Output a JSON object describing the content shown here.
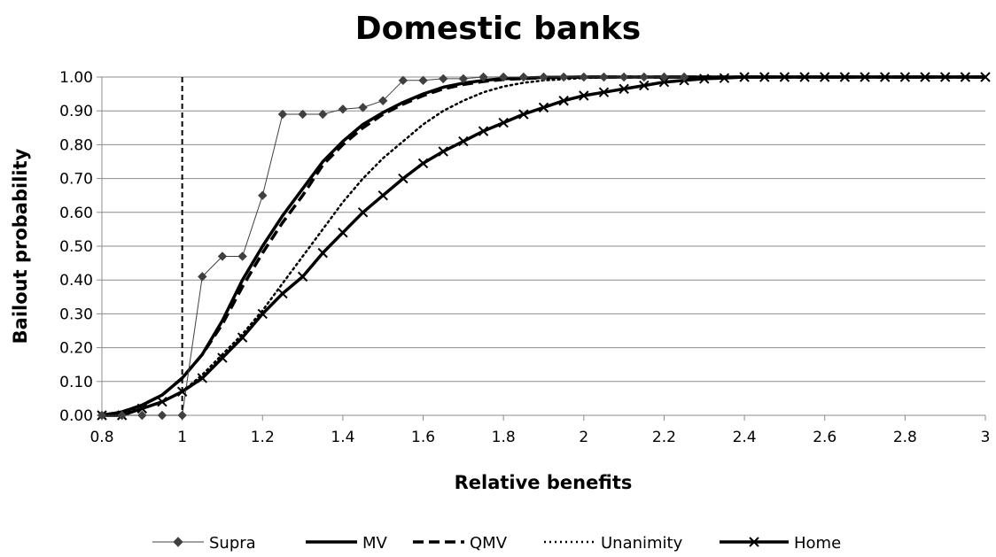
{
  "chart_data": {
    "type": "line",
    "title": "Domestic banks",
    "xlabel": "Relative benefits",
    "ylabel": "Bailout probability",
    "xlim": [
      0.8,
      3
    ],
    "ylim": [
      0,
      1
    ],
    "x_ticks": [
      "0.8",
      "1",
      "1.2",
      "1.4",
      "1.6",
      "1.8",
      "2",
      "2.2",
      "2.4",
      "2.6",
      "2.8",
      "3"
    ],
    "y_ticks": [
      "0.00",
      "0.10",
      "0.20",
      "0.30",
      "0.40",
      "0.50",
      "0.60",
      "0.70",
      "0.80",
      "0.90",
      "1.00"
    ],
    "grid": "horizontal",
    "legend_position": "bottom",
    "reference_line": {
      "x": 1.0,
      "style": "dashed"
    },
    "series": [
      {
        "name": "Supra",
        "style": "thin-diamond",
        "color": "#404040",
        "points": [
          [
            0.8,
            0.0
          ],
          [
            0.85,
            0.0
          ],
          [
            0.9,
            0.0
          ],
          [
            0.95,
            0.0
          ],
          [
            1.0,
            0.0
          ],
          [
            1.05,
            0.41
          ],
          [
            1.1,
            0.47
          ],
          [
            1.15,
            0.47
          ],
          [
            1.2,
            0.65
          ],
          [
            1.25,
            0.89
          ],
          [
            1.3,
            0.89
          ],
          [
            1.35,
            0.89
          ],
          [
            1.4,
            0.905
          ],
          [
            1.45,
            0.91
          ],
          [
            1.5,
            0.93
          ],
          [
            1.55,
            0.99
          ],
          [
            1.6,
            0.99
          ],
          [
            1.65,
            0.995
          ],
          [
            1.7,
            0.995
          ],
          [
            1.75,
            1.0
          ],
          [
            1.8,
            1.0
          ],
          [
            1.85,
            1.0
          ],
          [
            1.9,
            1.0
          ],
          [
            1.95,
            1.0
          ],
          [
            2.0,
            1.0
          ],
          [
            2.05,
            1.0
          ],
          [
            2.1,
            1.0
          ],
          [
            2.15,
            1.0
          ],
          [
            2.2,
            1.0
          ],
          [
            2.25,
            1.0
          ]
        ]
      },
      {
        "name": "MV",
        "style": "thick-solid",
        "color": "#000000",
        "points": [
          [
            0.8,
            0.0
          ],
          [
            0.85,
            0.01
          ],
          [
            0.9,
            0.03
          ],
          [
            0.95,
            0.06
          ],
          [
            1.0,
            0.11
          ],
          [
            1.05,
            0.18
          ],
          [
            1.1,
            0.28
          ],
          [
            1.15,
            0.4
          ],
          [
            1.2,
            0.5
          ],
          [
            1.25,
            0.59
          ],
          [
            1.3,
            0.67
          ],
          [
            1.35,
            0.75
          ],
          [
            1.4,
            0.81
          ],
          [
            1.45,
            0.86
          ],
          [
            1.5,
            0.895
          ],
          [
            1.55,
            0.925
          ],
          [
            1.6,
            0.95
          ],
          [
            1.65,
            0.97
          ],
          [
            1.7,
            0.982
          ],
          [
            1.75,
            0.99
          ],
          [
            1.8,
            0.995
          ],
          [
            1.9,
            0.999
          ],
          [
            2.0,
            1.0
          ],
          [
            2.2,
            1.0
          ],
          [
            2.5,
            1.0
          ],
          [
            3.0,
            1.0
          ]
        ]
      },
      {
        "name": "QMV",
        "style": "dashed",
        "color": "#000000",
        "points": [
          [
            0.8,
            0.0
          ],
          [
            0.85,
            0.01
          ],
          [
            0.9,
            0.03
          ],
          [
            0.95,
            0.06
          ],
          [
            1.0,
            0.11
          ],
          [
            1.05,
            0.18
          ],
          [
            1.1,
            0.27
          ],
          [
            1.15,
            0.38
          ],
          [
            1.2,
            0.48
          ],
          [
            1.25,
            0.57
          ],
          [
            1.3,
            0.65
          ],
          [
            1.35,
            0.74
          ],
          [
            1.4,
            0.8
          ],
          [
            1.45,
            0.85
          ],
          [
            1.5,
            0.89
          ],
          [
            1.55,
            0.92
          ],
          [
            1.6,
            0.945
          ],
          [
            1.65,
            0.965
          ],
          [
            1.7,
            0.978
          ],
          [
            1.75,
            0.987
          ],
          [
            1.8,
            0.993
          ],
          [
            1.9,
            0.998
          ],
          [
            2.0,
            1.0
          ],
          [
            2.2,
            1.0
          ],
          [
            2.5,
            1.0
          ],
          [
            3.0,
            1.0
          ]
        ]
      },
      {
        "name": "Unanimity",
        "style": "dotted",
        "color": "#000000",
        "points": [
          [
            0.8,
            0.0
          ],
          [
            0.85,
            0.01
          ],
          [
            0.9,
            0.02
          ],
          [
            0.95,
            0.04
          ],
          [
            1.0,
            0.07
          ],
          [
            1.05,
            0.12
          ],
          [
            1.1,
            0.18
          ],
          [
            1.15,
            0.24
          ],
          [
            1.2,
            0.31
          ],
          [
            1.25,
            0.39
          ],
          [
            1.3,
            0.47
          ],
          [
            1.35,
            0.55
          ],
          [
            1.4,
            0.63
          ],
          [
            1.45,
            0.7
          ],
          [
            1.5,
            0.76
          ],
          [
            1.55,
            0.81
          ],
          [
            1.6,
            0.86
          ],
          [
            1.65,
            0.9
          ],
          [
            1.7,
            0.93
          ],
          [
            1.75,
            0.955
          ],
          [
            1.8,
            0.972
          ],
          [
            1.85,
            0.983
          ],
          [
            1.9,
            0.99
          ],
          [
            2.0,
            0.997
          ],
          [
            2.1,
            1.0
          ],
          [
            2.5,
            1.0
          ],
          [
            3.0,
            1.0
          ]
        ]
      },
      {
        "name": "Home",
        "style": "thick-x",
        "color": "#000000",
        "points": [
          [
            0.8,
            0.0
          ],
          [
            0.85,
            0.0
          ],
          [
            0.9,
            0.02
          ],
          [
            0.95,
            0.04
          ],
          [
            1.0,
            0.07
          ],
          [
            1.05,
            0.11
          ],
          [
            1.1,
            0.17
          ],
          [
            1.15,
            0.23
          ],
          [
            1.2,
            0.3
          ],
          [
            1.25,
            0.36
          ],
          [
            1.3,
            0.41
          ],
          [
            1.35,
            0.48
          ],
          [
            1.4,
            0.54
          ],
          [
            1.45,
            0.6
          ],
          [
            1.5,
            0.65
          ],
          [
            1.55,
            0.7
          ],
          [
            1.6,
            0.745
          ],
          [
            1.65,
            0.78
          ],
          [
            1.7,
            0.81
          ],
          [
            1.75,
            0.84
          ],
          [
            1.8,
            0.865
          ],
          [
            1.85,
            0.89
          ],
          [
            1.9,
            0.91
          ],
          [
            1.95,
            0.93
          ],
          [
            2.0,
            0.945
          ],
          [
            2.05,
            0.955
          ],
          [
            2.1,
            0.965
          ],
          [
            2.15,
            0.975
          ],
          [
            2.2,
            0.985
          ],
          [
            2.25,
            0.99
          ],
          [
            2.3,
            0.995
          ],
          [
            2.35,
            0.997
          ],
          [
            2.4,
            1.0
          ],
          [
            2.45,
            1.0
          ],
          [
            2.5,
            1.0
          ],
          [
            2.55,
            1.0
          ],
          [
            2.6,
            1.0
          ],
          [
            2.65,
            1.0
          ],
          [
            2.7,
            1.0
          ],
          [
            2.75,
            1.0
          ],
          [
            2.8,
            1.0
          ],
          [
            2.85,
            1.0
          ],
          [
            2.9,
            1.0
          ],
          [
            2.95,
            1.0
          ],
          [
            3.0,
            1.0
          ]
        ]
      }
    ]
  }
}
